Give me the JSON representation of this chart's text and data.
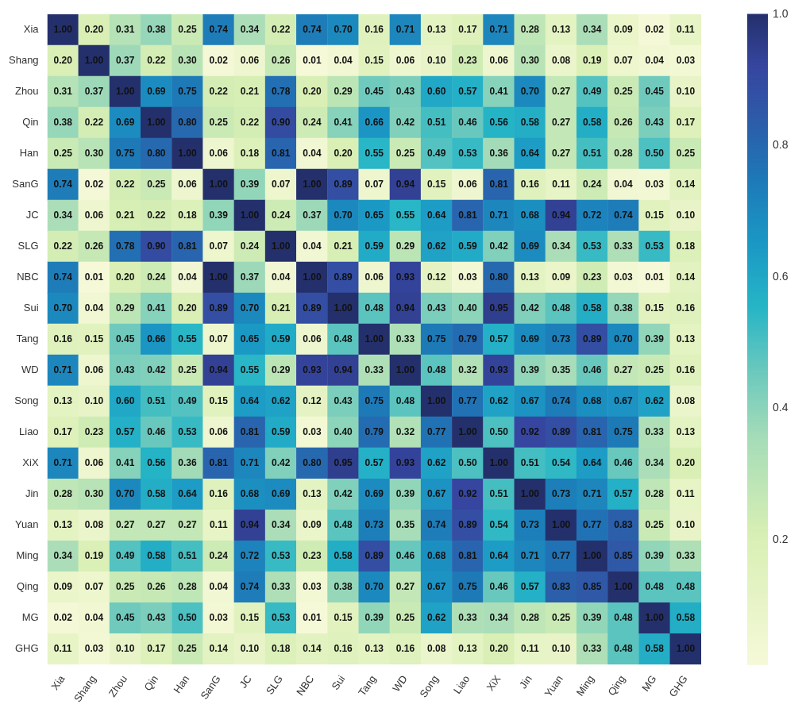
{
  "chart_data": {
    "type": "heatmap",
    "categories": [
      "Xia",
      "Shang",
      "Zhou",
      "Qin",
      "Han",
      "SanG",
      "JC",
      "SLG",
      "NBC",
      "Sui",
      "Tang",
      "WD",
      "Song",
      "Liao",
      "XiX",
      "Jin",
      "Yuan",
      "Ming",
      "Qing",
      "MG",
      "GHG"
    ],
    "y_categories": [
      "Xia",
      "Shang",
      "Zhou",
      "Qin",
      "Han",
      "SanG",
      "JC",
      "SLG",
      "NBC",
      "Sui",
      "Tang",
      "WD",
      "Song",
      "Liao",
      "XiX",
      "Jin",
      "Yuan",
      "Ming",
      "Qing",
      "MG",
      "GHG"
    ],
    "cells": [
      [
        1.0,
        0.2,
        0.31,
        0.38,
        0.25,
        0.74,
        0.34,
        0.22,
        0.74,
        0.7,
        0.16,
        0.71,
        0.13,
        0.17,
        0.71,
        0.28,
        0.13,
        0.34,
        0.09,
        0.02,
        0.11
      ],
      [
        0.2,
        1.0,
        0.37,
        0.22,
        0.3,
        0.02,
        0.06,
        0.26,
        0.01,
        0.04,
        0.15,
        0.06,
        0.1,
        0.23,
        0.06,
        0.3,
        0.08,
        0.19,
        0.07,
        0.04,
        0.03
      ],
      [
        0.31,
        0.37,
        1.0,
        0.69,
        0.75,
        0.22,
        0.21,
        0.78,
        0.2,
        0.29,
        0.45,
        0.43,
        0.6,
        0.57,
        0.41,
        0.7,
        0.27,
        0.49,
        0.25,
        0.45,
        0.1
      ],
      [
        0.38,
        0.22,
        0.69,
        1.0,
        0.8,
        0.25,
        0.22,
        0.9,
        0.24,
        0.41,
        0.66,
        0.42,
        0.51,
        0.46,
        0.56,
        0.58,
        0.27,
        0.58,
        0.26,
        0.43,
        0.17
      ],
      [
        0.25,
        0.3,
        0.75,
        0.8,
        1.0,
        0.06,
        0.18,
        0.81,
        0.04,
        0.2,
        0.55,
        0.25,
        0.49,
        0.53,
        0.36,
        0.64,
        0.27,
        0.51,
        0.28,
        0.5,
        0.25
      ],
      [
        0.74,
        0.02,
        0.22,
        0.25,
        0.06,
        1.0,
        0.39,
        0.07,
        1.0,
        0.89,
        0.07,
        0.94,
        0.15,
        0.06,
        0.81,
        0.16,
        0.11,
        0.24,
        0.04,
        0.03,
        0.14
      ],
      [
        0.34,
        0.06,
        0.21,
        0.22,
        0.18,
        0.39,
        1.0,
        0.24,
        0.37,
        0.7,
        0.65,
        0.55,
        0.64,
        0.81,
        0.71,
        0.68,
        0.94,
        0.72,
        0.74,
        0.15,
        0.1
      ],
      [
        0.22,
        0.26,
        0.78,
        0.9,
        0.81,
        0.07,
        0.24,
        1.0,
        0.04,
        0.21,
        0.59,
        0.29,
        0.62,
        0.59,
        0.42,
        0.69,
        0.34,
        0.53,
        0.33,
        0.53,
        0.18
      ],
      [
        0.74,
        0.01,
        0.2,
        0.24,
        0.04,
        1.0,
        0.37,
        0.04,
        1.0,
        0.89,
        0.06,
        0.93,
        0.12,
        0.03,
        0.8,
        0.13,
        0.09,
        0.23,
        0.03,
        0.01,
        0.14
      ],
      [
        0.7,
        0.04,
        0.29,
        0.41,
        0.2,
        0.89,
        0.7,
        0.21,
        0.89,
        1.0,
        0.48,
        0.94,
        0.43,
        0.4,
        0.95,
        0.42,
        0.48,
        0.58,
        0.38,
        0.15,
        0.16
      ],
      [
        0.16,
        0.15,
        0.45,
        0.66,
        0.55,
        0.07,
        0.65,
        0.59,
        0.06,
        0.48,
        1.0,
        0.33,
        0.75,
        0.79,
        0.57,
        0.69,
        0.73,
        0.89,
        0.7,
        0.39,
        0.13
      ],
      [
        0.71,
        0.06,
        0.43,
        0.42,
        0.25,
        0.94,
        0.55,
        0.29,
        0.93,
        0.94,
        0.33,
        1.0,
        0.48,
        0.32,
        0.93,
        0.39,
        0.35,
        0.46,
        0.27,
        0.25,
        0.16
      ],
      [
        0.13,
        0.1,
        0.6,
        0.51,
        0.49,
        0.15,
        0.64,
        0.62,
        0.12,
        0.43,
        0.75,
        0.48,
        1.0,
        0.77,
        0.62,
        0.67,
        0.74,
        0.68,
        0.67,
        0.62,
        0.08
      ],
      [
        0.17,
        0.23,
        0.57,
        0.46,
        0.53,
        0.06,
        0.81,
        0.59,
        0.03,
        0.4,
        0.79,
        0.32,
        0.77,
        1.0,
        0.5,
        0.92,
        0.89,
        0.81,
        0.75,
        0.33,
        0.13
      ],
      [
        0.71,
        0.06,
        0.41,
        0.56,
        0.36,
        0.81,
        0.71,
        0.42,
        0.8,
        0.95,
        0.57,
        0.93,
        0.62,
        0.5,
        1.0,
        0.51,
        0.54,
        0.64,
        0.46,
        0.34,
        0.2
      ],
      [
        0.28,
        0.3,
        0.7,
        0.58,
        0.64,
        0.16,
        0.68,
        0.69,
        0.13,
        0.42,
        0.69,
        0.39,
        0.67,
        0.92,
        0.51,
        1.0,
        0.73,
        0.71,
        0.57,
        0.28,
        0.11
      ],
      [
        0.13,
        0.08,
        0.27,
        0.27,
        0.27,
        0.11,
        0.94,
        0.34,
        0.09,
        0.48,
        0.73,
        0.35,
        0.74,
        0.89,
        0.54,
        0.73,
        1.0,
        0.77,
        0.83,
        0.25,
        0.1
      ],
      [
        0.34,
        0.19,
        0.49,
        0.58,
        0.51,
        0.24,
        0.72,
        0.53,
        0.23,
        0.58,
        0.89,
        0.46,
        0.68,
        0.81,
        0.64,
        0.71,
        0.77,
        1.0,
        0.85,
        0.39,
        0.33
      ],
      [
        0.09,
        0.07,
        0.25,
        0.26,
        0.28,
        0.04,
        0.74,
        0.33,
        0.03,
        0.38,
        0.7,
        0.27,
        0.67,
        0.75,
        0.46,
        0.57,
        0.83,
        0.85,
        1.0,
        0.48,
        0.48
      ],
      [
        0.02,
        0.04,
        0.45,
        0.43,
        0.5,
        0.03,
        0.15,
        0.53,
        0.01,
        0.15,
        0.39,
        0.25,
        0.62,
        0.33,
        0.34,
        0.28,
        0.25,
        0.39,
        0.48,
        1.0,
        0.58
      ],
      [
        0.11,
        0.03,
        0.1,
        0.17,
        0.25,
        0.14,
        0.1,
        0.18,
        0.14,
        0.16,
        0.13,
        0.16,
        0.08,
        0.13,
        0.2,
        0.11,
        0.1,
        0.33,
        0.48,
        0.58,
        1.0
      ]
    ],
    "cell_labels": [
      [
        "1.00",
        "0.20",
        "0.31",
        "0.38",
        "0.25",
        "0.74",
        "0.34",
        "0.22",
        "0.74",
        "0.70",
        "0.16",
        "0.71",
        "0.13",
        "0.17",
        "0.71",
        "0.28",
        "0.13",
        "0.34",
        "0.09",
        "0.02",
        "0.11"
      ],
      [
        "0.20",
        "1.00",
        "0.37",
        "0.22",
        "0.30",
        "0.02",
        "0.06",
        "0.26",
        "0.01",
        "0.04",
        "0.15",
        "0.06",
        "0.10",
        "0.23",
        "0.06",
        "0.30",
        "0.08",
        "0.19",
        "0.07",
        "0.04",
        "0.03"
      ],
      [
        "0.31",
        "0.37",
        "1.00",
        "0.69",
        "0.75",
        "0.22",
        "0.21",
        "0.78",
        "0.20",
        "0.29",
        "0.45",
        "0.43",
        "0.60",
        "0.57",
        "0.41",
        "0.70",
        "0.27",
        "0.49",
        "0.25",
        "0.45",
        "0.10"
      ],
      [
        "0.38",
        "0.22",
        "0.69",
        "1.00",
        "0.80",
        "0.25",
        "0.22",
        "0.90",
        "0.24",
        "0.41",
        "0.66",
        "0.42",
        "0.51",
        "0.46",
        "0.56",
        "0.58",
        "0.27",
        "0.58",
        "0.26",
        "0.43",
        "0.17"
      ],
      [
        "0.25",
        "0.30",
        "0.75",
        "0.80",
        "1.00",
        "0.06",
        "0.18",
        "0.81",
        "0.04",
        "0.20",
        "0.55",
        "0.25",
        "0.49",
        "0.53",
        "0.36",
        "0.64",
        "0.27",
        "0.51",
        "0.28",
        "0.50",
        "0.25"
      ],
      [
        "0.74",
        "0.02",
        "0.22",
        "0.25",
        "0.06",
        "1.00",
        "0.39",
        "0.07",
        "1.00",
        "0.89",
        "0.07",
        "0.94",
        "0.15",
        "0.06",
        "0.81",
        "0.16",
        "0.11",
        "0.24",
        "0.04",
        "0.03",
        "0.14"
      ],
      [
        "0.34",
        "0.06",
        "0.21",
        "0.22",
        "0.18",
        "0.39",
        "1.00",
        "0.24",
        "0.37",
        "0.70",
        "0.65",
        "0.55",
        "0.64",
        "0.81",
        "0.71",
        "0.68",
        "0.94",
        "0.72",
        "0.74",
        "0.15",
        "0.10"
      ],
      [
        "0.22",
        "0.26",
        "0.78",
        "0.90",
        "0.81",
        "0.07",
        "0.24",
        "1.00",
        "0.04",
        "0.21",
        "0.59",
        "0.29",
        "0.62",
        "0.59",
        "0.42",
        "0.69",
        "0.34",
        "0.53",
        "0.33",
        "0.53",
        "0.18"
      ],
      [
        "0.74",
        "0.01",
        "0.20",
        "0.24",
        "0.04",
        "1.00",
        "0.37",
        "0.04",
        "1.00",
        "0.89",
        "0.06",
        "0.93",
        "0.12",
        "0.03",
        "0.80",
        "0.13",
        "0.09",
        "0.23",
        "0.03",
        "0.01",
        "0.14"
      ],
      [
        "0.70",
        "0.04",
        "0.29",
        "0.41",
        "0.20",
        "0.89",
        "0.70",
        "0.21",
        "0.89",
        "1.00",
        "0.48",
        "0.94",
        "0.43",
        "0.40",
        "0.95",
        "0.42",
        "0.48",
        "0.58",
        "0.38",
        "0.15",
        "0.16"
      ],
      [
        "0.16",
        "0.15",
        "0.45",
        "0.66",
        "0.55",
        "0.07",
        "0.65",
        "0.59",
        "0.06",
        "0.48",
        "1.00",
        "0.33",
        "0.75",
        "0.79",
        "0.57",
        "0.69",
        "0.73",
        "0.89",
        "0.70",
        "0.39",
        "0.13"
      ],
      [
        "0.71",
        "0.06",
        "0.43",
        "0.42",
        "0.25",
        "0.94",
        "0.55",
        "0.29",
        "0.93",
        "0.94",
        "0.33",
        "1.00",
        "0.48",
        "0.32",
        "0.93",
        "0.39",
        "0.35",
        "0.46",
        "0.27",
        "0.25",
        "0.16"
      ],
      [
        "0.13",
        "0.10",
        "0.60",
        "0.51",
        "0.49",
        "0.15",
        "0.64",
        "0.62",
        "0.12",
        "0.43",
        "0.75",
        "0.48",
        "1.00",
        "0.77",
        "0.62",
        "0.67",
        "0.74",
        "0.68",
        "0.67",
        "0.62",
        "0.08"
      ],
      [
        "0.17",
        "0.23",
        "0.57",
        "0.46",
        "0.53",
        "0.06",
        "0.81",
        "0.59",
        "0.03",
        "0.40",
        "0.79",
        "0.32",
        "0.77",
        "1.00",
        "0.50",
        "0.92",
        "0.89",
        "0.81",
        "0.75",
        "0.33",
        "0.13"
      ],
      [
        "0.71",
        "0.06",
        "0.41",
        "0.56",
        "0.36",
        "0.81",
        "0.71",
        "0.42",
        "0.80",
        "0.95",
        "0.57",
        "0.93",
        "0.62",
        "0.50",
        "1.00",
        "0.51",
        "0.54",
        "0.64",
        "0.46",
        "0.34",
        "0.20"
      ],
      [
        "0.28",
        "0.30",
        "0.70",
        "0.58",
        "0.64",
        "0.16",
        "0.68",
        "0.69",
        "0.13",
        "0.42",
        "0.69",
        "0.39",
        "0.67",
        "0.92",
        "0.51",
        "1.00",
        "0.73",
        "0.71",
        "0.57",
        "0.28",
        "0.11"
      ],
      [
        "0.13",
        "0.08",
        "0.27",
        "0.27",
        "0.27",
        "0.11",
        "0.94",
        "0.34",
        "0.09",
        "0.48",
        "0.73",
        "0.35",
        "0.74",
        "0.89",
        "0.54",
        "0.73",
        "1.00",
        "0.77",
        "0.83",
        "0.25",
        "0.10"
      ],
      [
        "0.34",
        "0.19",
        "0.49",
        "0.58",
        "0.51",
        "0.24",
        "0.72",
        "0.53",
        "0.23",
        "0.58",
        "0.89",
        "0.46",
        "0.68",
        "0.81",
        "0.64",
        "0.71",
        "0.77",
        "1.00",
        "0.85",
        "0.39",
        "0.33"
      ],
      [
        "0.09",
        "0.07",
        "0.25",
        "0.26",
        "0.28",
        "0.04",
        "0.74",
        "0.33",
        "0.03",
        "0.38",
        "0.70",
        "0.27",
        "0.67",
        "0.75",
        "0.46",
        "0.57",
        "0.83",
        "0.85",
        "1.00",
        "0.48",
        "0.48"
      ],
      [
        "0.02",
        "0.04",
        "0.45",
        "0.43",
        "0.50",
        "0.03",
        "0.15",
        "0.53",
        "0.01",
        "0.15",
        "0.39",
        "0.25",
        "0.62",
        "0.33",
        "0.34",
        "0.28",
        "0.25",
        "0.39",
        "0.48",
        "1.00",
        "0.58"
      ],
      [
        "0.11",
        "0.03",
        "0.10",
        "0.17",
        "0.25",
        "0.14",
        "0.10",
        "0.18",
        "0.14",
        "0.16",
        "0.13",
        "0.16",
        "0.08",
        "0.13",
        "0.20",
        "0.11",
        "0.10",
        "0.33",
        "0.48",
        "0.58",
        "1.00"
      ]
    ],
    "clim": [
      0.01,
      1
    ],
    "cticks": [
      0.2,
      0.4,
      0.6,
      0.8,
      {
        "value": 1,
        "label": "1.0"
      }
    ]
  }
}
